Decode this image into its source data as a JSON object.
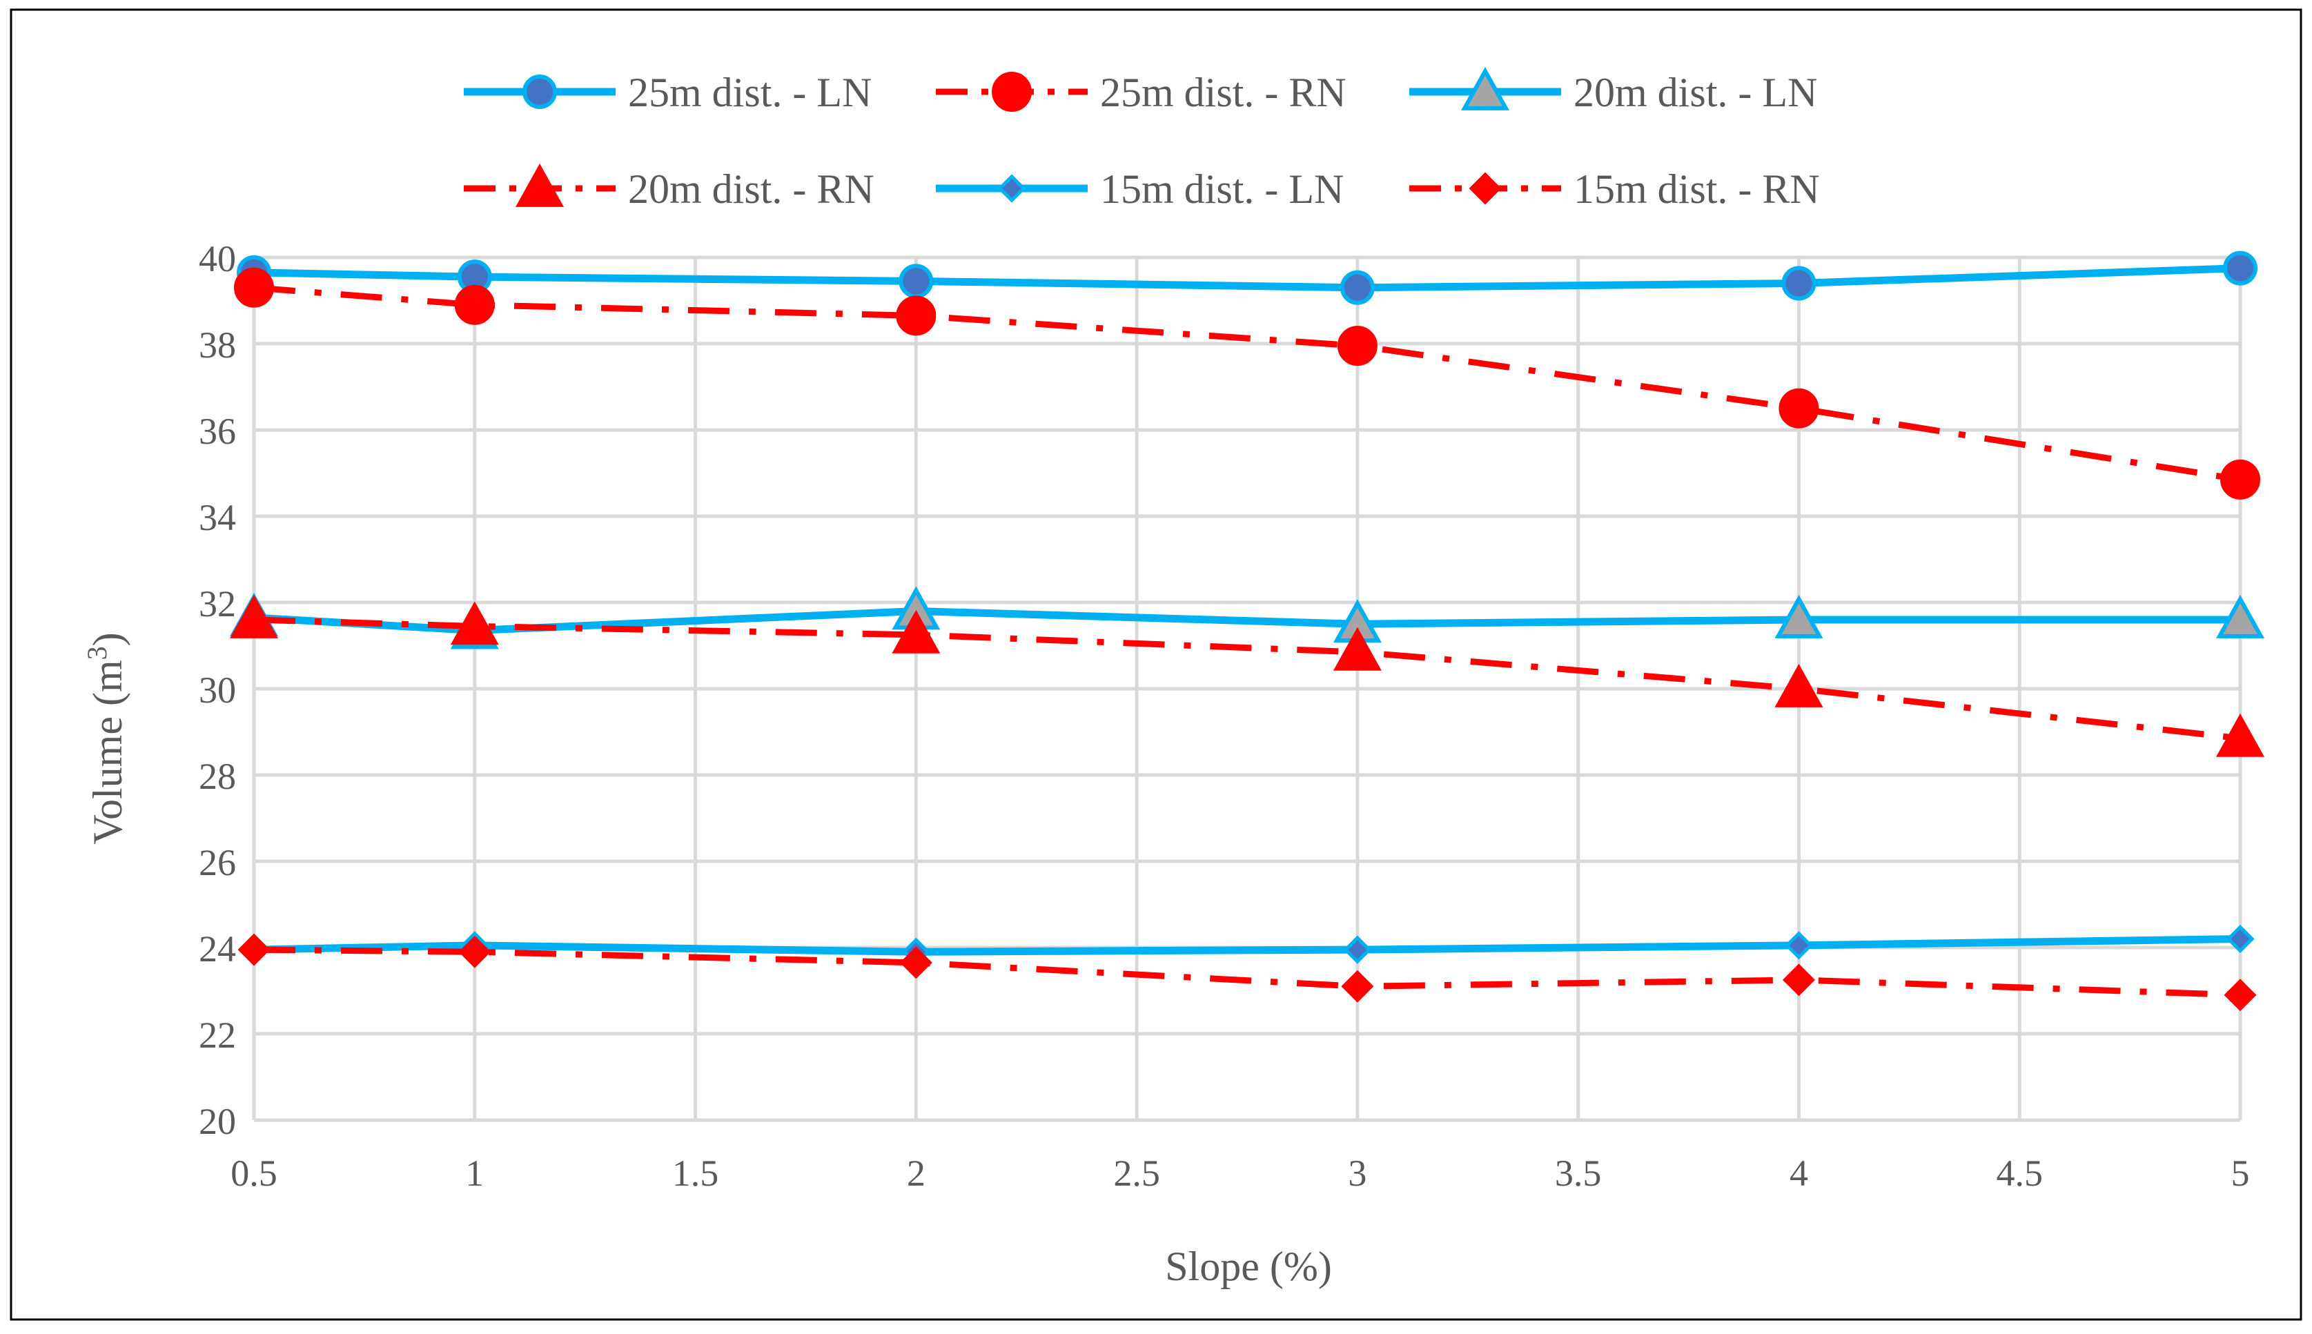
{
  "chart_data": {
    "type": "line",
    "title": "",
    "xlabel": "Slope (%)",
    "ylabel": "Volume (m³)",
    "ylabel_main": "Volume (m",
    "ylabel_sup": "3",
    "ylabel_close": ")",
    "xlim": [
      0.5,
      5
    ],
    "ylim": [
      20,
      40
    ],
    "x_ticks": [
      0.5,
      1,
      1.5,
      2,
      2.5,
      3,
      3.5,
      4,
      4.5,
      5
    ],
    "x_tick_labels": [
      "0.5",
      "1",
      "1.5",
      "2",
      "2.5",
      "3",
      "3.5",
      "4",
      "4.5",
      "5"
    ],
    "y_ticks": [
      20,
      22,
      24,
      26,
      28,
      30,
      32,
      34,
      36,
      38,
      40
    ],
    "y_tick_labels": [
      "20",
      "22",
      "24",
      "26",
      "28",
      "30",
      "32",
      "34",
      "36",
      "38",
      "40"
    ],
    "grid": true,
    "legend_position": "top",
    "colors": {
      "ln": "#00B0F0",
      "rn": "#FF0000",
      "grid": "#D9D9D9",
      "border": "#000000",
      "triangle_fill": "#A5A5A5",
      "diamond_fill": "#4472C4"
    },
    "x": [
      0.5,
      1,
      2,
      3,
      4,
      5
    ],
    "series": [
      {
        "name": "25m dist. - LN",
        "style": "solid",
        "color": "#00B0F0",
        "marker": "circle",
        "marker_fill": "#4472C4",
        "values": [
          39.65,
          39.55,
          39.45,
          39.3,
          39.4,
          39.75
        ]
      },
      {
        "name": "25m dist. - RN",
        "style": "dashdot",
        "color": "#FF0000",
        "marker": "circle",
        "marker_fill": "#FF0000",
        "values": [
          39.3,
          38.9,
          38.65,
          37.95,
          36.5,
          34.85
        ]
      },
      {
        "name": "20m dist. - LN",
        "style": "solid",
        "color": "#00B0F0",
        "marker": "triangle",
        "marker_fill": "#A5A5A5",
        "values": [
          31.65,
          31.35,
          31.8,
          31.5,
          31.6,
          31.6
        ]
      },
      {
        "name": "20m dist. - RN",
        "style": "dashdot",
        "color": "#FF0000",
        "marker": "triangle",
        "marker_fill": "#FF0000",
        "values": [
          31.6,
          31.45,
          31.25,
          30.85,
          30.0,
          28.85
        ]
      },
      {
        "name": "15m dist. - LN",
        "style": "solid",
        "color": "#00B0F0",
        "marker": "diamond",
        "marker_fill": "#4472C4",
        "values": [
          23.95,
          24.05,
          23.9,
          23.95,
          24.05,
          24.2
        ]
      },
      {
        "name": "15m dist. - RN",
        "style": "dashdot",
        "color": "#FF0000",
        "marker": "diamond",
        "marker_fill": "#FF0000",
        "values": [
          23.95,
          23.9,
          23.65,
          23.1,
          23.25,
          22.9
        ]
      }
    ]
  }
}
